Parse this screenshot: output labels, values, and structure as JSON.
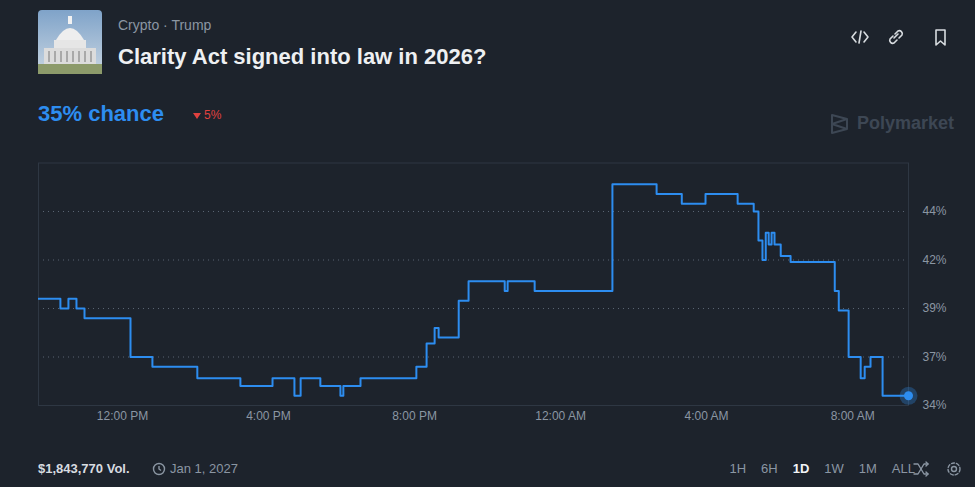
{
  "page": {
    "breadcrumb": "Crypto · Trump",
    "chance": "35% chance",
    "change": "5%",
    "brand": "Polymarket",
    "volume": "$1,843,770 Vol.",
    "end_date": "Jan 1, 2027",
    "ranges": [
      "1H",
      "6H",
      "1D",
      "1W",
      "1M",
      "ALL"
    ],
    "selected_range": "1D"
  },
  "chart_data": {
    "type": "line",
    "title": "Clarity Act signed into law in 2026?",
    "x": [
      9.7,
      10.3,
      10.52,
      10.74,
      10.96,
      12.22,
      12.82,
      14.05,
      15.23,
      16.11,
      16.71,
      16.88,
      17.42,
      17.97,
      18.05,
      18.52,
      20.05,
      20.33,
      20.55,
      20.66,
      21.21,
      21.48,
      22.47,
      22.55,
      23.29,
      25.42,
      26.63,
      27.32,
      27.97,
      28.85,
      29.29,
      29.42,
      29.53,
      29.62,
      29.7,
      29.78,
      29.86,
      30.03,
      30.3,
      31.51,
      31.62,
      31.89,
      32.22,
      32.33,
      32.49,
      32.82,
      33.53
    ],
    "values": [
      39.5,
      39.0,
      39.5,
      39.0,
      38.5,
      36.5,
      36.0,
      35.4,
      35.0,
      35.4,
      34.5,
      35.4,
      35.0,
      34.5,
      35.0,
      35.4,
      36.0,
      37.2,
      38.0,
      37.5,
      39.4,
      40.4,
      39.9,
      40.4,
      39.9,
      45.4,
      44.9,
      44.4,
      44.9,
      44.4,
      44.0,
      42.5,
      41.5,
      42.9,
      42.3,
      42.9,
      42.3,
      41.7,
      41.4,
      39.9,
      38.9,
      36.5,
      35.4,
      36.0,
      36.5,
      34.5,
      34.5
    ],
    "color": "#2d8df0",
    "line_style": "step",
    "grid": true,
    "xlim": [
      9.7,
      33.53
    ],
    "xticks": [
      {
        "value": 12,
        "label": "12:00 PM"
      },
      {
        "value": 16,
        "label": "4:00 PM"
      },
      {
        "value": 20,
        "label": "8:00 PM"
      },
      {
        "value": 24,
        "label": "12:00 AM"
      },
      {
        "value": 28,
        "label": "4:00 AM"
      },
      {
        "value": 32,
        "label": "8:00 AM"
      }
    ],
    "ylim": [
      34,
      46.5
    ],
    "yticks": [
      {
        "value": 34,
        "label": "34%"
      },
      {
        "value": 36.5,
        "label": "37%"
      },
      {
        "value": 39,
        "label": "39%"
      },
      {
        "value": 41.5,
        "label": "42%"
      },
      {
        "value": 44,
        "label": "44%"
      }
    ]
  }
}
